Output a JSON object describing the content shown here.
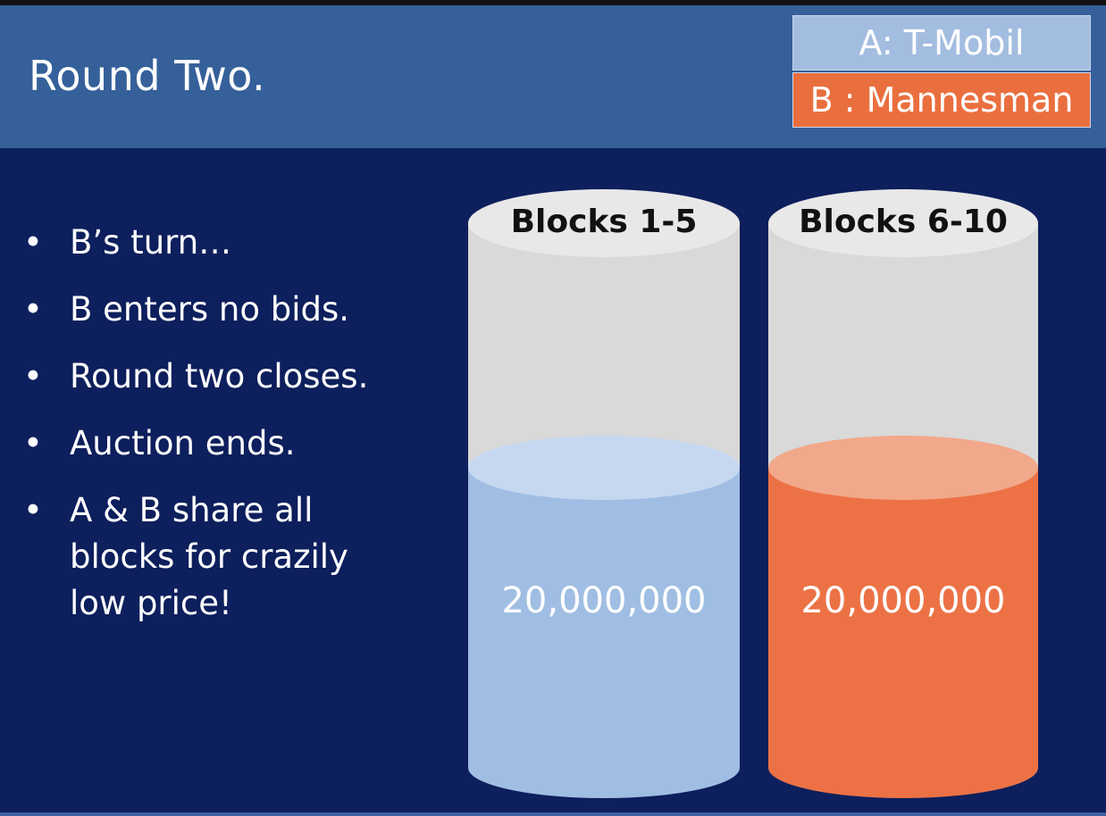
{
  "slide": {
    "title": "Round Two.",
    "legend": [
      {
        "label": "A: T-Mobil",
        "color": "#a3bde0"
      },
      {
        "label": "B : Mannesman",
        "color": "#ea6f3f"
      }
    ],
    "bullets": [
      "B’s turn…",
      "B enters no bids.",
      "Round two closes.",
      "Auction ends.",
      "A & B share all blocks for crazily low price!"
    ],
    "cylinders": [
      {
        "label": "Blocks 1-5",
        "value": "20,000,000",
        "fill_color": "#a0bee3",
        "fill_top_color": "#c6d8f0"
      },
      {
        "label": "Blocks 6-10",
        "value": "20,000,000",
        "fill_color": "#ec7245",
        "fill_top_color": "#f2a88a"
      }
    ]
  }
}
